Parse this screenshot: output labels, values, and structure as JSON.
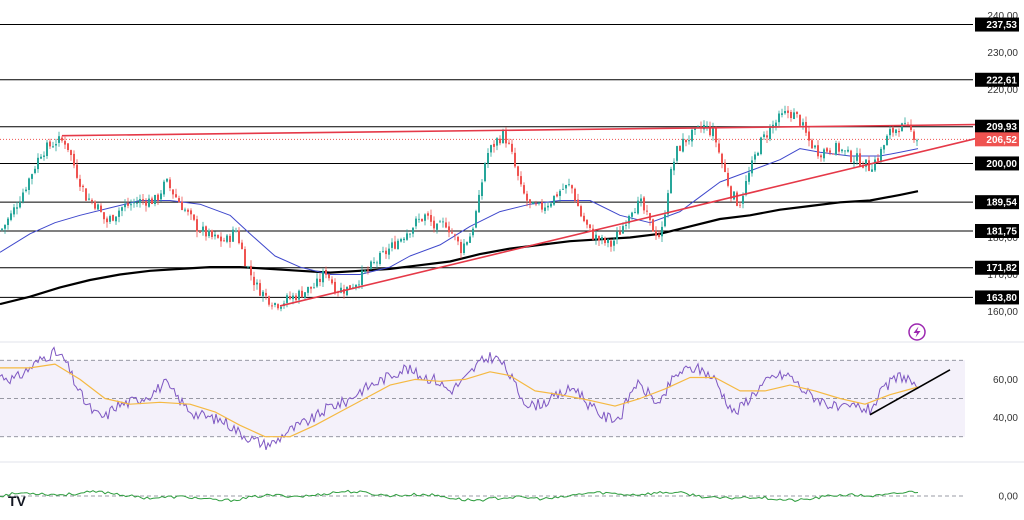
{
  "chart_data": {
    "type": "candlestick",
    "price_panel": {
      "ylim": [
        155,
        242
      ],
      "axis_ticks": [
        "240,00",
        "230,00",
        "220,00",
        "180,00",
        "170,00",
        "160,00"
      ],
      "axis_tick_values": [
        240,
        230,
        220,
        180,
        170,
        160
      ],
      "levels": [
        {
          "label": "237,53",
          "value": 237.53
        },
        {
          "label": "222,61",
          "value": 222.61
        },
        {
          "label": "209,93",
          "value": 209.93
        },
        {
          "label": "200,00",
          "value": 200.0
        },
        {
          "label": "189,54",
          "value": 189.54
        },
        {
          "label": "181,75",
          "value": 181.75
        },
        {
          "label": "171,82",
          "value": 171.82
        },
        {
          "label": "163,80",
          "value": 163.8
        }
      ],
      "last_price": {
        "label": "206,52",
        "value": 206.52
      },
      "close_anchors": [
        [
          0,
          182
        ],
        [
          10,
          186
        ],
        [
          25,
          194
        ],
        [
          40,
          203
        ],
        [
          55,
          206
        ],
        [
          65,
          206
        ],
        [
          75,
          198
        ],
        [
          85,
          191
        ],
        [
          95,
          189
        ],
        [
          105,
          184
        ],
        [
          120,
          188
        ],
        [
          140,
          190
        ],
        [
          155,
          190
        ],
        [
          165,
          195
        ],
        [
          175,
          191
        ],
        [
          185,
          187
        ],
        [
          195,
          183
        ],
        [
          210,
          180
        ],
        [
          225,
          179
        ],
        [
          235,
          182
        ],
        [
          245,
          173
        ],
        [
          255,
          167
        ],
        [
          265,
          164
        ],
        [
          275,
          162
        ],
        [
          285,
          163
        ],
        [
          300,
          165
        ],
        [
          315,
          167
        ],
        [
          325,
          171
        ],
        [
          335,
          166
        ],
        [
          345,
          166
        ],
        [
          355,
          168
        ],
        [
          370,
          172
        ],
        [
          385,
          176
        ],
        [
          400,
          180
        ],
        [
          415,
          184
        ],
        [
          425,
          186
        ],
        [
          435,
          182
        ],
        [
          445,
          184
        ],
        [
          460,
          177
        ],
        [
          470,
          181
        ],
        [
          478,
          190
        ],
        [
          485,
          202
        ],
        [
          495,
          206
        ],
        [
          503,
          208
        ],
        [
          510,
          203
        ],
        [
          520,
          193
        ],
        [
          530,
          188
        ],
        [
          540,
          188
        ],
        [
          550,
          190
        ],
        [
          560,
          193
        ],
        [
          570,
          194
        ],
        [
          580,
          186
        ],
        [
          590,
          181
        ],
        [
          600,
          179
        ],
        [
          610,
          178
        ],
        [
          620,
          182
        ],
        [
          630,
          188
        ],
        [
          640,
          189
        ],
        [
          650,
          183
        ],
        [
          660,
          180
        ],
        [
          668,
          195
        ],
        [
          675,
          203
        ],
        [
          683,
          206
        ],
        [
          693,
          208
        ],
        [
          703,
          210
        ],
        [
          713,
          208
        ],
        [
          720,
          201
        ],
        [
          730,
          192
        ],
        [
          738,
          189
        ],
        [
          748,
          197
        ],
        [
          758,
          205
        ],
        [
          768,
          209
        ],
        [
          778,
          212
        ],
        [
          788,
          214
        ],
        [
          798,
          212
        ],
        [
          808,
          206
        ],
        [
          818,
          203
        ],
        [
          828,
          204
        ],
        [
          838,
          204
        ],
        [
          848,
          202
        ],
        [
          858,
          201
        ],
        [
          868,
          199
        ],
        [
          878,
          202
        ],
        [
          888,
          208
        ],
        [
          898,
          210
        ],
        [
          908,
          209
        ],
        [
          918,
          206.5
        ]
      ],
      "ma50": [
        [
          0,
          176
        ],
        [
          30,
          181
        ],
        [
          55,
          184
        ],
        [
          80,
          186
        ],
        [
          110,
          188
        ],
        [
          140,
          190
        ],
        [
          170,
          190
        ],
        [
          200,
          189
        ],
        [
          230,
          186
        ],
        [
          250,
          181
        ],
        [
          275,
          175
        ],
        [
          300,
          172
        ],
        [
          330,
          170
        ],
        [
          360,
          170
        ],
        [
          390,
          172
        ],
        [
          410,
          175
        ],
        [
          440,
          178
        ],
        [
          470,
          183
        ],
        [
          500,
          187
        ],
        [
          530,
          189
        ],
        [
          560,
          190
        ],
        [
          590,
          190
        ],
        [
          620,
          186
        ],
        [
          650,
          184
        ],
        [
          680,
          187
        ],
        [
          700,
          191
        ],
        [
          720,
          195
        ],
        [
          750,
          198
        ],
        [
          780,
          201
        ],
        [
          800,
          204
        ],
        [
          820,
          203
        ],
        [
          850,
          202
        ],
        [
          880,
          202
        ],
        [
          900,
          203
        ],
        [
          918,
          204
        ]
      ],
      "ma200": [
        [
          0,
          162
        ],
        [
          30,
          164
        ],
        [
          60,
          166.5
        ],
        [
          90,
          168.5
        ],
        [
          120,
          170
        ],
        [
          150,
          171
        ],
        [
          180,
          171.5
        ],
        [
          210,
          172
        ],
        [
          240,
          172
        ],
        [
          270,
          171.5
        ],
        [
          300,
          171
        ],
        [
          330,
          170.5
        ],
        [
          360,
          171
        ],
        [
          390,
          171.5
        ],
        [
          420,
          172.5
        ],
        [
          450,
          173.5
        ],
        [
          480,
          175.5
        ],
        [
          510,
          177
        ],
        [
          540,
          178
        ],
        [
          570,
          179
        ],
        [
          600,
          179.5
        ],
        [
          630,
          180
        ],
        [
          660,
          181
        ],
        [
          690,
          183
        ],
        [
          720,
          185
        ],
        [
          750,
          186
        ],
        [
          780,
          187.5
        ],
        [
          810,
          188.5
        ],
        [
          840,
          189.5
        ],
        [
          870,
          190
        ],
        [
          900,
          191.5
        ],
        [
          918,
          192.5
        ]
      ],
      "trendlines": [
        {
          "from": [
            62,
            207.5
          ],
          "to": [
            975,
            210.5
          ]
        },
        {
          "from": [
            280,
            161.5
          ],
          "to": [
            980,
            207
          ]
        }
      ]
    },
    "rsi_panel": {
      "ylim": [
        22,
        78
      ],
      "axis_ticks": [
        "60,00",
        "40,00"
      ],
      "axis_tick_values": [
        60,
        40
      ],
      "band": [
        30,
        70
      ],
      "midline": 50,
      "rsi_anchors": [
        [
          0,
          62
        ],
        [
          15,
          60
        ],
        [
          30,
          66
        ],
        [
          45,
          72
        ],
        [
          55,
          74
        ],
        [
          65,
          70
        ],
        [
          75,
          58
        ],
        [
          85,
          48
        ],
        [
          95,
          42
        ],
        [
          105,
          40
        ],
        [
          115,
          46
        ],
        [
          130,
          48
        ],
        [
          150,
          52
        ],
        [
          165,
          58
        ],
        [
          175,
          52
        ],
        [
          185,
          46
        ],
        [
          195,
          42
        ],
        [
          210,
          40
        ],
        [
          225,
          38
        ],
        [
          240,
          32
        ],
        [
          255,
          28
        ],
        [
          265,
          26
        ],
        [
          275,
          27
        ],
        [
          285,
          32
        ],
        [
          300,
          36
        ],
        [
          315,
          40
        ],
        [
          330,
          46
        ],
        [
          345,
          48
        ],
        [
          360,
          54
        ],
        [
          375,
          58
        ],
        [
          390,
          62
        ],
        [
          405,
          66
        ],
        [
          420,
          62
        ],
        [
          435,
          60
        ],
        [
          450,
          54
        ],
        [
          465,
          60
        ],
        [
          478,
          68
        ],
        [
          490,
          72
        ],
        [
          500,
          70
        ],
        [
          510,
          62
        ],
        [
          520,
          52
        ],
        [
          530,
          46
        ],
        [
          545,
          48
        ],
        [
          560,
          52
        ],
        [
          575,
          56
        ],
        [
          590,
          46
        ],
        [
          605,
          40
        ],
        [
          620,
          40
        ],
        [
          635,
          58
        ],
        [
          650,
          52
        ],
        [
          660,
          46
        ],
        [
          670,
          58
        ],
        [
          680,
          64
        ],
        [
          695,
          66
        ],
        [
          705,
          64
        ],
        [
          715,
          60
        ],
        [
          725,
          50
        ],
        [
          735,
          42
        ],
        [
          745,
          48
        ],
        [
          760,
          56
        ],
        [
          775,
          62
        ],
        [
          790,
          62
        ],
        [
          800,
          56
        ],
        [
          810,
          52
        ],
        [
          825,
          48
        ],
        [
          840,
          44
        ],
        [
          855,
          46
        ],
        [
          870,
          44
        ],
        [
          880,
          52
        ],
        [
          890,
          58
        ],
        [
          900,
          62
        ],
        [
          910,
          60
        ],
        [
          918,
          52
        ]
      ],
      "signal_anchors": [
        [
          0,
          66
        ],
        [
          30,
          66
        ],
        [
          55,
          68
        ],
        [
          80,
          60
        ],
        [
          105,
          50
        ],
        [
          130,
          47
        ],
        [
          160,
          48
        ],
        [
          190,
          47
        ],
        [
          215,
          43
        ],
        [
          240,
          36
        ],
        [
          265,
          30
        ],
        [
          290,
          30
        ],
        [
          315,
          36
        ],
        [
          340,
          43
        ],
        [
          365,
          50
        ],
        [
          390,
          57
        ],
        [
          415,
          60
        ],
        [
          440,
          59
        ],
        [
          465,
          60
        ],
        [
          490,
          64
        ],
        [
          510,
          62
        ],
        [
          535,
          54
        ],
        [
          560,
          52
        ],
        [
          590,
          49
        ],
        [
          615,
          46
        ],
        [
          640,
          50
        ],
        [
          665,
          55
        ],
        [
          690,
          61
        ],
        [
          715,
          61
        ],
        [
          740,
          54
        ],
        [
          765,
          54
        ],
        [
          790,
          57
        ],
        [
          815,
          54
        ],
        [
          840,
          50
        ],
        [
          865,
          47
        ],
        [
          890,
          52
        ],
        [
          918,
          56
        ]
      ],
      "trendline": {
        "from": [
          870,
          41.5
        ],
        "to": [
          950,
          65
        ]
      }
    },
    "osc_panel": {
      "axis_ticks": [
        "0,00"
      ],
      "ylim": [
        -1,
        1
      ],
      "zero": 0
    },
    "tags": {
      "logo_text": "TV"
    },
    "colors": {
      "up": "#26a69a",
      "down": "#ef5350",
      "trend": "#e53948",
      "ma50": "#3f48cc",
      "ma200": "#000000",
      "rsi": "#7e57c2",
      "signal": "#f5b942",
      "osc": "#2e9d3e",
      "level": "#000000",
      "last": "#ef5350"
    }
  }
}
